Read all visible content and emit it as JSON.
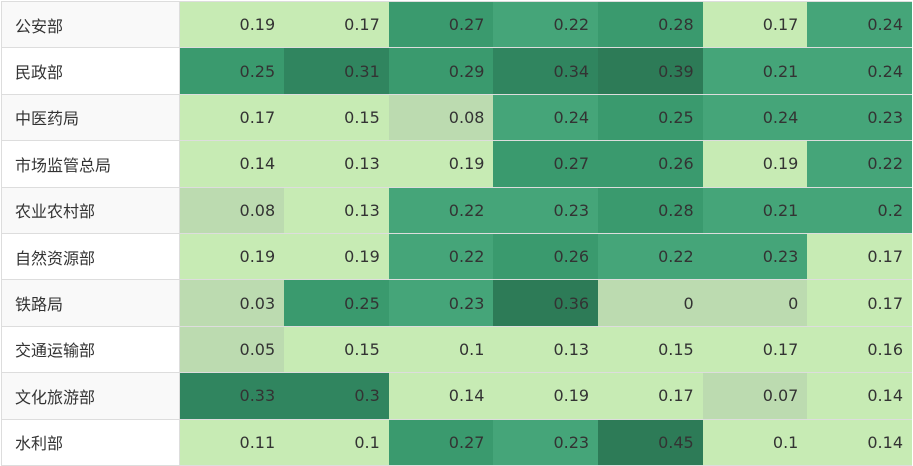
{
  "chart_data": {
    "type": "heatmap",
    "rows": [
      "公安部",
      "民政部",
      "中医药局",
      "市场监管总局",
      "农业农村部",
      "自然资源部",
      "铁路局",
      "交通运输部",
      "文化旅游部",
      "水利部"
    ],
    "values": [
      [
        0.19,
        0.17,
        0.27,
        0.22,
        0.28,
        0.17,
        0.24
      ],
      [
        0.25,
        0.31,
        0.29,
        0.34,
        0.39,
        0.21,
        0.24
      ],
      [
        0.17,
        0.15,
        0.08,
        0.24,
        0.25,
        0.24,
        0.23
      ],
      [
        0.14,
        0.13,
        0.19,
        0.27,
        0.26,
        0.19,
        0.22
      ],
      [
        0.08,
        0.13,
        0.22,
        0.23,
        0.28,
        0.21,
        0.2
      ],
      [
        0.19,
        0.19,
        0.22,
        0.26,
        0.22,
        0.23,
        0.17
      ],
      [
        0.03,
        0.25,
        0.23,
        0.36,
        0,
        0,
        0.17
      ],
      [
        0.05,
        0.15,
        0.1,
        0.13,
        0.15,
        0.17,
        0.16
      ],
      [
        0.33,
        0.3,
        0.14,
        0.19,
        0.17,
        0.07,
        0.14
      ],
      [
        0.11,
        0.1,
        0.27,
        0.23,
        0.45,
        0.1,
        0.14
      ]
    ],
    "color_scale": [
      "#bcdbb0",
      "#c7ebb4",
      "#45a579",
      "#3a9a6e",
      "#30855f",
      "#2d7b57"
    ],
    "text_color": "#333333"
  }
}
